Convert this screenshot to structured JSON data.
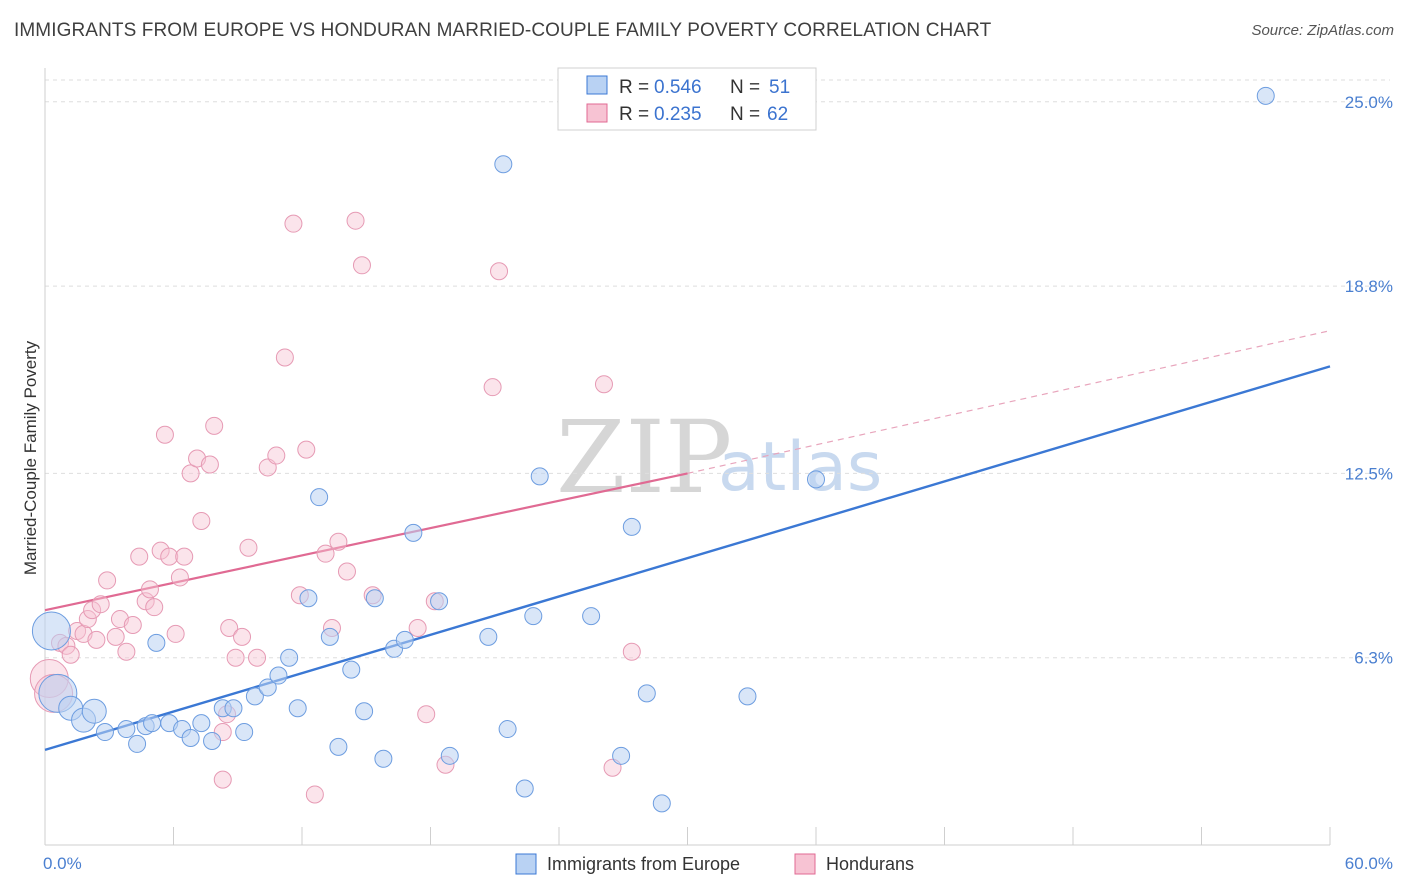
{
  "title": "IMMIGRANTS FROM EUROPE VS HONDURAN MARRIED-COUPLE FAMILY POVERTY CORRELATION CHART",
  "source": "Source: ZipAtlas.com",
  "watermark": {
    "zip": "ZIP",
    "atlas": "atlas"
  },
  "colors": {
    "blue": "#3b78d4",
    "blue_fill": "#b9d2f3",
    "pink": "#e06a93",
    "pink_fill": "#f7c3d3",
    "tick_text": "#4a7fd0"
  },
  "legend": {
    "rows": [
      {
        "r_label": "R =",
        "r_value": "0.546",
        "n_label": "N =",
        "n_value": "51"
      },
      {
        "r_label": "R =",
        "r_value": "0.235",
        "n_label": "N =",
        "n_value": "62"
      }
    ]
  },
  "chart_data": {
    "type": "scatter",
    "title": "IMMIGRANTS FROM EUROPE VS HONDURAN MARRIED-COUPLE FAMILY POVERTY CORRELATION CHART",
    "xlabel": "",
    "ylabel": "Married-Couple Family Poverty",
    "xlim": [
      0,
      60
    ],
    "ylim": [
      0,
      25.8
    ],
    "x_tick_labels": [
      "0.0%",
      "60.0%"
    ],
    "y_ticks": [
      6.3,
      12.5,
      18.8,
      25.0
    ],
    "y_tick_labels": [
      "6.3%",
      "12.5%",
      "18.8%",
      "25.0%"
    ],
    "grid": true,
    "legend_position": "top-center",
    "series": [
      {
        "name": "Immigrants from Europe",
        "color": "#3b78d4",
        "trend": {
          "x": [
            0,
            60
          ],
          "y": [
            3.2,
            16.1
          ]
        },
        "points": [
          {
            "x": 0.3,
            "y": 7.2,
            "s": 3
          },
          {
            "x": 0.6,
            "y": 5.1,
            "s": 3
          },
          {
            "x": 1.2,
            "y": 4.6,
            "s": 2
          },
          {
            "x": 1.8,
            "y": 4.2,
            "s": 2
          },
          {
            "x": 2.3,
            "y": 4.5,
            "s": 2
          },
          {
            "x": 2.8,
            "y": 3.8,
            "s": 1
          },
          {
            "x": 3.8,
            "y": 3.9,
            "s": 1
          },
          {
            "x": 4.3,
            "y": 3.4,
            "s": 1
          },
          {
            "x": 4.7,
            "y": 4.0,
            "s": 1
          },
          {
            "x": 5.2,
            "y": 6.8,
            "s": 1
          },
          {
            "x": 5.8,
            "y": 4.1,
            "s": 1
          },
          {
            "x": 6.4,
            "y": 3.9,
            "s": 1
          },
          {
            "x": 6.8,
            "y": 3.6,
            "s": 1
          },
          {
            "x": 7.3,
            "y": 4.1,
            "s": 1
          },
          {
            "x": 7.8,
            "y": 3.5,
            "s": 1
          },
          {
            "x": 8.3,
            "y": 4.6,
            "s": 1
          },
          {
            "x": 8.8,
            "y": 4.6,
            "s": 1
          },
          {
            "x": 9.3,
            "y": 3.8,
            "s": 1
          },
          {
            "x": 9.8,
            "y": 5.0,
            "s": 1
          },
          {
            "x": 10.4,
            "y": 5.3,
            "s": 1
          },
          {
            "x": 10.9,
            "y": 5.7,
            "s": 1
          },
          {
            "x": 11.4,
            "y": 6.3,
            "s": 1
          },
          {
            "x": 11.8,
            "y": 4.6,
            "s": 1
          },
          {
            "x": 12.3,
            "y": 8.3,
            "s": 1
          },
          {
            "x": 12.8,
            "y": 11.7,
            "s": 1
          },
          {
            "x": 13.3,
            "y": 7.0,
            "s": 1
          },
          {
            "x": 13.7,
            "y": 3.3,
            "s": 1
          },
          {
            "x": 14.3,
            "y": 5.9,
            "s": 1
          },
          {
            "x": 14.9,
            "y": 4.5,
            "s": 1
          },
          {
            "x": 15.4,
            "y": 8.3,
            "s": 1
          },
          {
            "x": 15.8,
            "y": 2.9,
            "s": 1
          },
          {
            "x": 16.3,
            "y": 6.6,
            "s": 1
          },
          {
            "x": 16.8,
            "y": 6.9,
            "s": 1
          },
          {
            "x": 17.2,
            "y": 10.5,
            "s": 1
          },
          {
            "x": 18.4,
            "y": 8.2,
            "s": 1
          },
          {
            "x": 18.9,
            "y": 3.0,
            "s": 1
          },
          {
            "x": 20.7,
            "y": 7.0,
            "s": 1
          },
          {
            "x": 21.4,
            "y": 22.9,
            "s": 1
          },
          {
            "x": 21.6,
            "y": 3.9,
            "s": 1
          },
          {
            "x": 22.4,
            "y": 1.9,
            "s": 1
          },
          {
            "x": 22.8,
            "y": 7.7,
            "s": 1
          },
          {
            "x": 23.1,
            "y": 12.4,
            "s": 1
          },
          {
            "x": 25.5,
            "y": 7.7,
            "s": 1
          },
          {
            "x": 26.9,
            "y": 3.0,
            "s": 1
          },
          {
            "x": 27.4,
            "y": 10.7,
            "s": 1
          },
          {
            "x": 28.1,
            "y": 5.1,
            "s": 1
          },
          {
            "x": 28.8,
            "y": 1.4,
            "s": 1
          },
          {
            "x": 32.8,
            "y": 5.0,
            "s": 1
          },
          {
            "x": 36.0,
            "y": 12.3,
            "s": 1
          },
          {
            "x": 57.0,
            "y": 25.2,
            "s": 1
          },
          {
            "x": 5.0,
            "y": 4.1,
            "s": 1
          }
        ]
      },
      {
        "name": "Hondurans",
        "color": "#e06a93",
        "trend": {
          "x": [
            0,
            30
          ],
          "y": [
            7.9,
            12.5
          ]
        },
        "trend_extension": {
          "x": [
            30,
            60
          ],
          "y": [
            12.5,
            17.3
          ]
        },
        "points": [
          {
            "x": 0.2,
            "y": 5.6,
            "s": 3
          },
          {
            "x": 0.4,
            "y": 5.1,
            "s": 3
          },
          {
            "x": 0.7,
            "y": 6.8,
            "s": 1
          },
          {
            "x": 1.0,
            "y": 6.7,
            "s": 1
          },
          {
            "x": 1.2,
            "y": 6.4,
            "s": 1
          },
          {
            "x": 1.5,
            "y": 7.2,
            "s": 1
          },
          {
            "x": 1.8,
            "y": 7.1,
            "s": 1
          },
          {
            "x": 2.0,
            "y": 7.6,
            "s": 1
          },
          {
            "x": 2.2,
            "y": 7.9,
            "s": 1
          },
          {
            "x": 2.4,
            "y": 6.9,
            "s": 1
          },
          {
            "x": 2.6,
            "y": 8.1,
            "s": 1
          },
          {
            "x": 2.9,
            "y": 8.9,
            "s": 1
          },
          {
            "x": 3.3,
            "y": 7.0,
            "s": 1
          },
          {
            "x": 3.5,
            "y": 7.6,
            "s": 1
          },
          {
            "x": 3.8,
            "y": 6.5,
            "s": 1
          },
          {
            "x": 4.1,
            "y": 7.4,
            "s": 1
          },
          {
            "x": 4.4,
            "y": 9.7,
            "s": 1
          },
          {
            "x": 4.7,
            "y": 8.2,
            "s": 1
          },
          {
            "x": 4.9,
            "y": 8.6,
            "s": 1
          },
          {
            "x": 5.1,
            "y": 8.0,
            "s": 1
          },
          {
            "x": 5.4,
            "y": 9.9,
            "s": 1
          },
          {
            "x": 5.6,
            "y": 13.8,
            "s": 1
          },
          {
            "x": 5.8,
            "y": 9.7,
            "s": 1
          },
          {
            "x": 6.1,
            "y": 7.1,
            "s": 1
          },
          {
            "x": 6.3,
            "y": 9.0,
            "s": 1
          },
          {
            "x": 6.5,
            "y": 9.7,
            "s": 1
          },
          {
            "x": 6.8,
            "y": 12.5,
            "s": 1
          },
          {
            "x": 7.1,
            "y": 13.0,
            "s": 1
          },
          {
            "x": 7.3,
            "y": 10.9,
            "s": 1
          },
          {
            "x": 7.7,
            "y": 12.8,
            "s": 1
          },
          {
            "x": 7.9,
            "y": 14.1,
            "s": 1
          },
          {
            "x": 8.3,
            "y": 3.8,
            "s": 1
          },
          {
            "x": 8.5,
            "y": 4.4,
            "s": 1
          },
          {
            "x": 8.6,
            "y": 7.3,
            "s": 1
          },
          {
            "x": 8.9,
            "y": 6.3,
            "s": 1
          },
          {
            "x": 9.2,
            "y": 7.0,
            "s": 1
          },
          {
            "x": 9.5,
            "y": 10.0,
            "s": 1
          },
          {
            "x": 9.9,
            "y": 6.3,
            "s": 1
          },
          {
            "x": 10.4,
            "y": 12.7,
            "s": 1
          },
          {
            "x": 10.8,
            "y": 13.1,
            "s": 1
          },
          {
            "x": 11.2,
            "y": 16.4,
            "s": 1
          },
          {
            "x": 11.6,
            "y": 20.9,
            "s": 1
          },
          {
            "x": 11.9,
            "y": 8.4,
            "s": 1
          },
          {
            "x": 12.2,
            "y": 13.3,
            "s": 1
          },
          {
            "x": 12.6,
            "y": 1.7,
            "s": 1
          },
          {
            "x": 13.1,
            "y": 9.8,
            "s": 1
          },
          {
            "x": 13.4,
            "y": 7.3,
            "s": 1
          },
          {
            "x": 13.7,
            "y": 10.2,
            "s": 1
          },
          {
            "x": 14.1,
            "y": 9.2,
            "s": 1
          },
          {
            "x": 14.5,
            "y": 21.0,
            "s": 1
          },
          {
            "x": 14.8,
            "y": 19.5,
            "s": 1
          },
          {
            "x": 15.3,
            "y": 8.4,
            "s": 1
          },
          {
            "x": 17.4,
            "y": 7.3,
            "s": 1
          },
          {
            "x": 17.8,
            "y": 4.4,
            "s": 1
          },
          {
            "x": 18.2,
            "y": 8.2,
            "s": 1
          },
          {
            "x": 18.7,
            "y": 2.7,
            "s": 1
          },
          {
            "x": 20.9,
            "y": 15.4,
            "s": 1
          },
          {
            "x": 21.2,
            "y": 19.3,
            "s": 1
          },
          {
            "x": 26.1,
            "y": 15.5,
            "s": 1
          },
          {
            "x": 26.5,
            "y": 2.6,
            "s": 1
          },
          {
            "x": 27.4,
            "y": 6.5,
            "s": 1
          },
          {
            "x": 8.3,
            "y": 2.2,
            "s": 1
          }
        ]
      }
    ]
  },
  "bottom_legend": [
    {
      "label": "Immigrants from Europe"
    },
    {
      "label": "Hondurans"
    }
  ]
}
